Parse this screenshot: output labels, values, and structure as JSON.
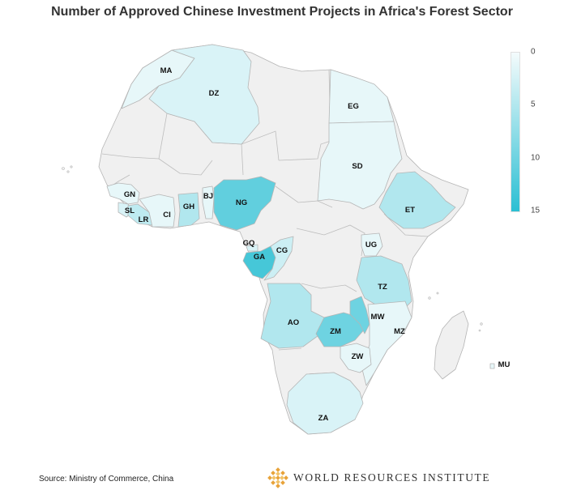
{
  "title": "Number of Approved Chinese Investment Projects in Africa's Forest Sector",
  "legend": {
    "ticks": [
      "0",
      "5",
      "10",
      "15"
    ],
    "min": 0,
    "max": 15,
    "color_low": "#f4fbfc",
    "color_high": "#2bbfd3",
    "no_data_color": "#f0f0f0"
  },
  "countries": [
    {
      "code": "MA",
      "value": 1
    },
    {
      "code": "DZ",
      "value": 2
    },
    {
      "code": "EG",
      "value": 1
    },
    {
      "code": "SD",
      "value": 1
    },
    {
      "code": "GN",
      "value": 1
    },
    {
      "code": "SL",
      "value": 2
    },
    {
      "code": "LR",
      "value": 4
    },
    {
      "code": "CI",
      "value": 1
    },
    {
      "code": "GH",
      "value": 5
    },
    {
      "code": "BJ",
      "value": 1
    },
    {
      "code": "NG",
      "value": 11
    },
    {
      "code": "ET",
      "value": 5
    },
    {
      "code": "GQ",
      "value": 2
    },
    {
      "code": "GA",
      "value": 13
    },
    {
      "code": "CG",
      "value": 3
    },
    {
      "code": "UG",
      "value": 1
    },
    {
      "code": "TZ",
      "value": 5
    },
    {
      "code": "AO",
      "value": 5
    },
    {
      "code": "ZM",
      "value": 10
    },
    {
      "code": "MW",
      "value": 10
    },
    {
      "code": "MZ",
      "value": 1
    },
    {
      "code": "ZW",
      "value": 1
    },
    {
      "code": "ZA",
      "value": 2
    },
    {
      "code": "MU",
      "value": 1
    }
  ],
  "source": "Source: Ministry of Commerce, China",
  "logo_text": "WORLD RESOURCES INSTITUTE"
}
